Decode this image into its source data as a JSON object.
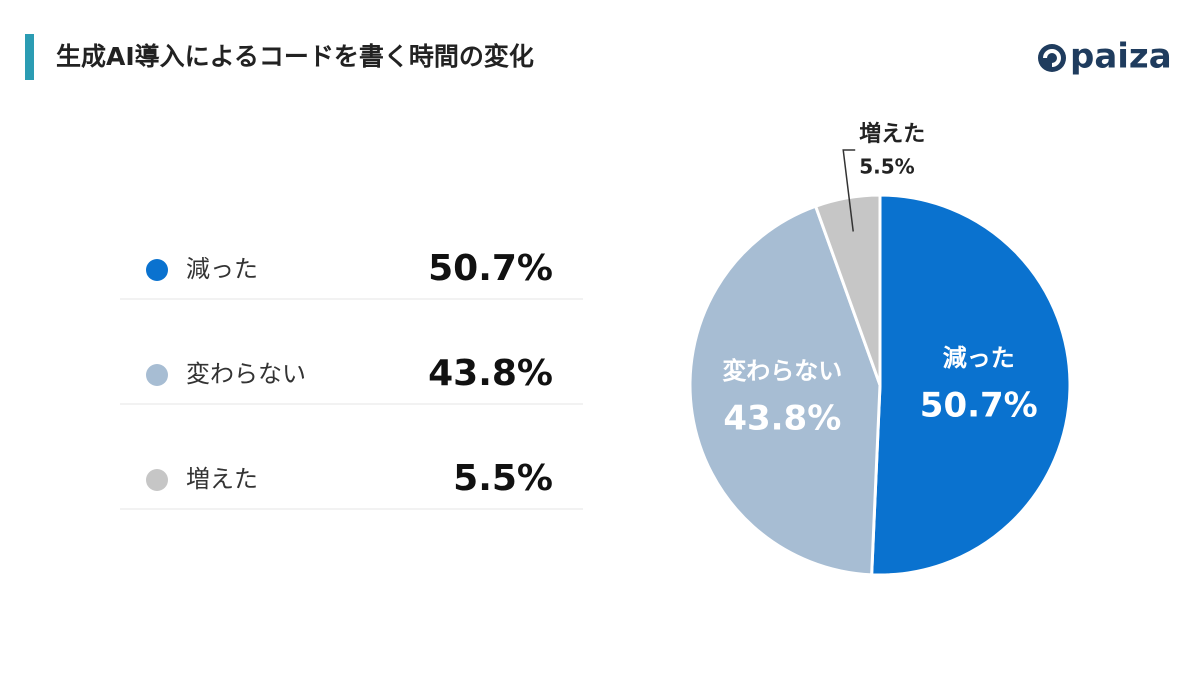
{
  "logo": "paiza",
  "chart_data": {
    "type": "pie",
    "title": "生成AI導入によるコードを書く時間の変化",
    "categories": [
      "減った",
      "変わらない",
      "増えた"
    ],
    "values": [
      50.7,
      43.8,
      5.5
    ],
    "value_labels": [
      "50.7%",
      "43.8%",
      "5.5%"
    ],
    "colors": [
      "#0a72cf",
      "#a7bdd3",
      "#c6c6c6"
    ]
  }
}
